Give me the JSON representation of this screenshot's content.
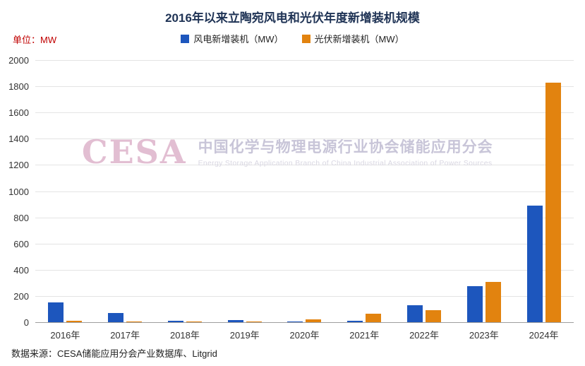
{
  "title": "2016年以来立陶宛风电和光伏年度新增装机规模",
  "unit_label": "单位：MW",
  "source": "数据来源：CESA储能应用分会产业数据库、Litgrid",
  "watermark": {
    "logo": "CESA",
    "cn": "中国化学与物理电源行业协会储能应用分会",
    "en": "Energy Storage Application Branch of China Industrial Association of Power Sources"
  },
  "colors": {
    "wind": "#1d56bd",
    "solar": "#e2830f",
    "title": "#1f3355",
    "unit_label": "#c00000"
  },
  "chart_data": {
    "type": "bar",
    "categories": [
      "2016年",
      "2017年",
      "2018年",
      "2019年",
      "2020年",
      "2021年",
      "2022年",
      "2023年",
      "2024年"
    ],
    "series": [
      {
        "name": "风电新增装机（MW）",
        "color": "#1d56bd",
        "values": [
          150,
          70,
          12,
          15,
          5,
          10,
          130,
          275,
          890
        ]
      },
      {
        "name": "光伏新增装机（MW）",
        "color": "#e2830f",
        "values": [
          10,
          8,
          5,
          5,
          20,
          65,
          90,
          310,
          1830
        ]
      }
    ],
    "ylabel": "MW",
    "ylim": [
      0,
      2000
    ],
    "ytick_step": 200,
    "grid": true,
    "legend_position": "top"
  }
}
